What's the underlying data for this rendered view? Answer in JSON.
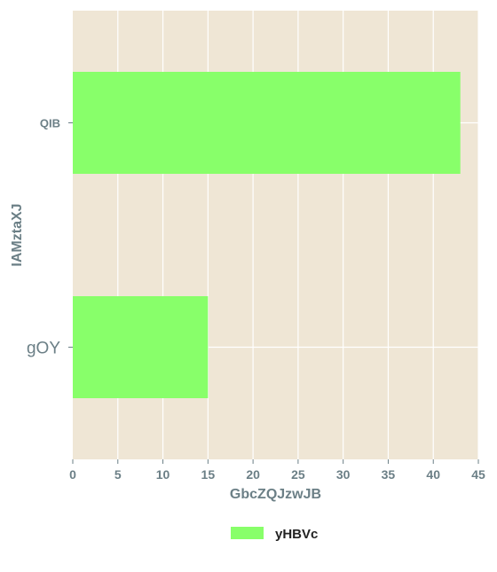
{
  "chart_data": {
    "type": "bar",
    "orientation": "horizontal",
    "categories": [
      "QIB",
      "gOY"
    ],
    "series": [
      {
        "name": "yHBVc",
        "values": [
          43,
          15
        ],
        "color": "#88ff6a"
      }
    ],
    "xlabel": "GbcZQJzwJB",
    "ylabel": "IAMztaXJ",
    "xlim": [
      0,
      45
    ],
    "xticks": [
      0,
      5,
      10,
      15,
      20,
      25,
      30,
      35,
      40,
      45
    ],
    "grid": true,
    "legend_position": "bottom-center",
    "colors": {
      "plot_background": "#efe6d5",
      "grid": "#ffffff",
      "text": "#6b7f86"
    }
  }
}
